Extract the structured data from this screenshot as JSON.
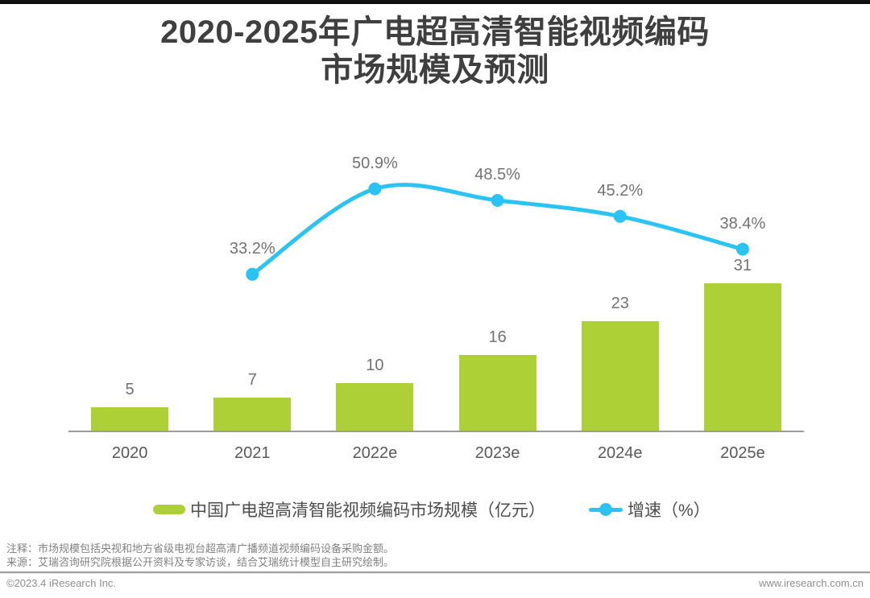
{
  "header": {
    "title_line1": "2020-2025年广电超高清智能视频编码",
    "title_line2": "市场规模及预测"
  },
  "chart_data": {
    "type": "bar",
    "title": "2020-2025年广电超高清智能视频编码市场规模及预测",
    "categories": [
      "2020",
      "2021",
      "2022e",
      "2023e",
      "2024e",
      "2025e"
    ],
    "series": [
      {
        "name": "中国广电超高清智能视频编码市场规模（亿元）",
        "type": "bar",
        "values": [
          5,
          7,
          10,
          16,
          23,
          31
        ],
        "color": "#add036"
      },
      {
        "name": "增速（%）",
        "type": "line",
        "values": [
          null,
          33.2,
          50.9,
          48.5,
          45.2,
          38.4
        ],
        "labels": [
          "",
          "33.2%",
          "50.9%",
          "48.5%",
          "45.2%",
          "38.4%"
        ],
        "color": "#2bc4f2"
      }
    ],
    "xlabel": "",
    "ylabel": "",
    "grid": false,
    "legend_position": "bottom"
  },
  "notes": {
    "note_line": "注释：市场规模包括央视和地方省级电视台超高清广播频道视频编码设备采购金额。",
    "source_line": "来源：艾瑞咨询研究院根据公开资料及专家访谈，结合艾瑞统计模型自主研究绘制。"
  },
  "footer": {
    "left": "©2023.4 iResearch Inc.",
    "right": "www.iresearch.com.cn"
  },
  "colors": {
    "bar": "#add036",
    "line": "#2bc4f2",
    "title_text": "#3f3f3f",
    "value_label": "#737373",
    "axis_label": "#595959",
    "legend_text": "#4d4d4d",
    "note_text": "#828282",
    "footer_text": "#8f8f8f",
    "axis_line": "#9b9b9b",
    "top_border": "#101010"
  }
}
